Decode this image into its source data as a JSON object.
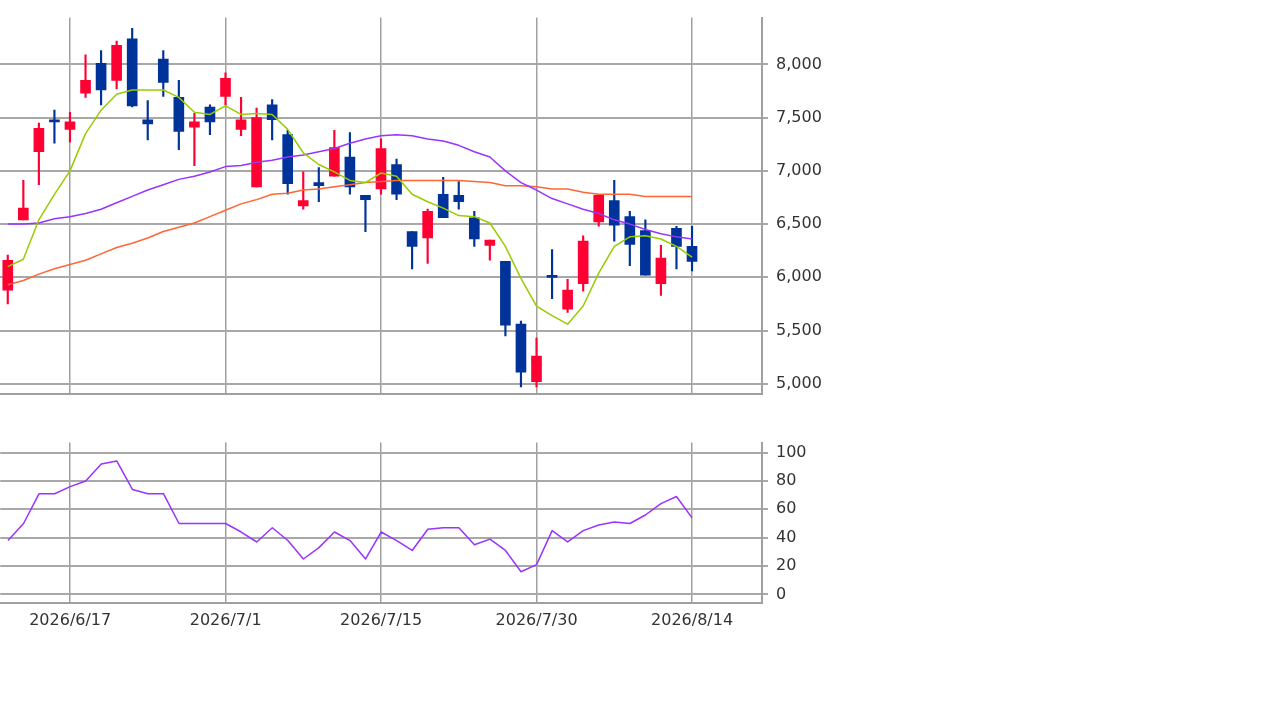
{
  "chart_data": [
    {
      "type": "candlestick",
      "categories": [
        null,
        null,
        null,
        null,
        "2026/6/17",
        null,
        null,
        null,
        null,
        null,
        null,
        null,
        null,
        null,
        "2026/7/1",
        null,
        null,
        null,
        null,
        null,
        null,
        null,
        null,
        null,
        "2026/7/15",
        null,
        null,
        null,
        null,
        null,
        null,
        null,
        null,
        null,
        "2026/7/30",
        null,
        null,
        null,
        null,
        null,
        null,
        null,
        null,
        null,
        "2026/8/14",
        null,
        null,
        null,
        null
      ],
      "ohlc": [
        [
          5880,
          6210,
          5750,
          6160
        ],
        [
          6540,
          6910,
          6540,
          6650
        ],
        [
          7180,
          7450,
          6870,
          7400
        ],
        [
          7480,
          7570,
          7260,
          7460
        ],
        [
          7390,
          7550,
          7270,
          7460
        ],
        [
          7730,
          8090,
          7690,
          7850
        ],
        [
          8010,
          8130,
          7620,
          7760
        ],
        [
          7850,
          8220,
          7770,
          8180
        ],
        [
          8240,
          8340,
          7600,
          7610
        ],
        [
          7480,
          7660,
          7290,
          7440
        ],
        [
          8050,
          8130,
          7700,
          7830
        ],
        [
          7690,
          7850,
          7200,
          7370
        ],
        [
          7410,
          7540,
          7050,
          7460
        ],
        [
          7600,
          7620,
          7340,
          7460
        ],
        [
          7700,
          7920,
          7620,
          7870
        ],
        [
          7390,
          7690,
          7330,
          7480
        ],
        [
          6850,
          7590,
          6850,
          7500
        ],
        [
          7620,
          7670,
          7290,
          7480
        ],
        [
          7340,
          7380,
          6780,
          6880
        ],
        [
          6670,
          6990,
          6640,
          6720
        ],
        [
          6890,
          7030,
          6710,
          6860
        ],
        [
          6950,
          7380,
          6950,
          7220
        ],
        [
          7130,
          7360,
          6780,
          6850
        ],
        [
          6770,
          6770,
          6430,
          6730
        ],
        [
          6830,
          7300,
          6780,
          7210
        ],
        [
          7060,
          7110,
          6730,
          6780
        ],
        [
          6430,
          6430,
          6080,
          6290
        ],
        [
          6370,
          6640,
          6130,
          6620
        ],
        [
          6780,
          6940,
          6560,
          6560
        ],
        [
          6770,
          6900,
          6640,
          6710
        ],
        [
          6560,
          6620,
          6290,
          6360
        ],
        [
          6300,
          6350,
          6160,
          6350
        ],
        [
          6150,
          6150,
          5450,
          5550
        ],
        [
          5560,
          5590,
          4970,
          5110
        ],
        [
          5020,
          5430,
          4970,
          5260
        ],
        [
          6010,
          6260,
          5800,
          6000
        ],
        [
          5700,
          5980,
          5670,
          5880
        ],
        [
          5940,
          6390,
          5870,
          6340
        ],
        [
          6520,
          6780,
          6480,
          6770
        ],
        [
          6720,
          6910,
          6340,
          6490
        ],
        [
          6570,
          6620,
          6110,
          6310
        ],
        [
          6440,
          6540,
          6020,
          6020
        ],
        [
          5940,
          6300,
          5830,
          6180
        ],
        [
          6460,
          6480,
          6080,
          6290
        ],
        [
          6290,
          6480,
          6060,
          6150
        ],
        null,
        null,
        null,
        null
      ],
      "colors": [
        "#ff0033",
        "#ff0033",
        "#ff0033",
        "#003399",
        "#ff0033",
        "#ff0033",
        "#003399",
        "#ff0033",
        "#003399",
        "#003399",
        "#003399",
        "#003399",
        "#ff0033",
        "#003399",
        "#ff0033",
        "#ff0033",
        "#ff0033",
        "#003399",
        "#003399",
        "#ff0033",
        "#003399",
        "#ff0033",
        "#003399",
        "#003399",
        "#ff0033",
        "#003399",
        "#003399",
        "#ff0033",
        "#003399",
        "#003399",
        "#003399",
        "#ff0033",
        "#003399",
        "#003399",
        "#ff0033",
        "#003399",
        "#ff0033",
        "#ff0033",
        "#ff0033",
        "#003399",
        "#003399",
        "#003399",
        "#ff0033",
        "#003399",
        "#003399",
        null,
        null,
        null,
        null
      ],
      "series": [
        {
          "type": "line",
          "color": "#99cc00",
          "values": [
            6100,
            6170,
            6540,
            6780,
            7000,
            7350,
            7570,
            7720,
            7760,
            7760,
            7760,
            7690,
            7550,
            7530,
            7610,
            7530,
            7540,
            7530,
            7390,
            7170,
            7060,
            6990,
            6910,
            6890,
            6980,
            6950,
            6780,
            6710,
            6650,
            6580,
            6570,
            6510,
            6290,
            5990,
            5730,
            5640,
            5560,
            5730,
            6040,
            6290,
            6380,
            6390,
            6360,
            6290,
            6190,
            null,
            null,
            null,
            null
          ]
        },
        {
          "type": "line",
          "color": "#9933ff",
          "values": [
            6500,
            6500,
            6510,
            6550,
            6570,
            6600,
            6640,
            6700,
            6760,
            6820,
            6870,
            6920,
            6950,
            6990,
            7040,
            7050,
            7080,
            7100,
            7130,
            7150,
            7180,
            7210,
            7260,
            7300,
            7330,
            7340,
            7330,
            7300,
            7280,
            7240,
            7180,
            7130,
            7000,
            6890,
            6820,
            6740,
            6690,
            6640,
            6600,
            6540,
            6500,
            6450,
            6410,
            6380,
            6360,
            null,
            null,
            null,
            null
          ]
        },
        {
          "type": "line",
          "color": "#ff6633",
          "values": [
            5930,
            5970,
            6030,
            6080,
            6120,
            6160,
            6220,
            6280,
            6320,
            6370,
            6430,
            6470,
            6510,
            6570,
            6630,
            6690,
            6730,
            6780,
            6790,
            6820,
            6830,
            6850,
            6870,
            6890,
            6900,
            6910,
            6910,
            6910,
            6910,
            6910,
            6900,
            6890,
            6860,
            6860,
            6850,
            6830,
            6830,
            6800,
            6780,
            6780,
            6780,
            6760,
            6760,
            6760,
            6760,
            null,
            null,
            null,
            null
          ]
        }
      ],
      "ylim": [
        4900,
        8440
      ],
      "yticks": [
        {
          "value": 5000,
          "label": "5,000"
        },
        {
          "value": 5500,
          "label": "5,500"
        },
        {
          "value": 6000,
          "label": "6,000"
        },
        {
          "value": 6500,
          "label": "6,500"
        },
        {
          "value": 7000,
          "label": "7,000"
        },
        {
          "value": 7500,
          "label": "7,500"
        },
        {
          "value": 8000,
          "label": "8,000"
        }
      ],
      "grid": true,
      "marker": "none",
      "tick_labels": "y"
    },
    {
      "type": "line",
      "categories": [
        null,
        null,
        null,
        null,
        "2026/6/17",
        null,
        null,
        null,
        null,
        null,
        null,
        null,
        null,
        null,
        "2026/7/1",
        null,
        null,
        null,
        null,
        null,
        null,
        null,
        null,
        null,
        "2026/7/15",
        null,
        null,
        null,
        null,
        null,
        null,
        null,
        null,
        null,
        "2026/7/30",
        null,
        null,
        null,
        null,
        null,
        null,
        null,
        null,
        null,
        "2026/8/14",
        null,
        null,
        null,
        null
      ],
      "series": [
        {
          "color": "#9933ff",
          "values": [
            38,
            50,
            71,
            71,
            76,
            80,
            92,
            94,
            74,
            71,
            71,
            50,
            50,
            50,
            50,
            44,
            37,
            47,
            38,
            25,
            33,
            44,
            38,
            25,
            44,
            38,
            31,
            46,
            47,
            47,
            35,
            39,
            31,
            16,
            21,
            45,
            37,
            45,
            49,
            51,
            50,
            56,
            64,
            69,
            54,
            null,
            null,
            null,
            null
          ]
        }
      ],
      "ylim": [
        -6,
        107
      ],
      "yticks": [
        0,
        20,
        40,
        60,
        80,
        100
      ],
      "grid": true,
      "marker": "none"
    }
  ]
}
